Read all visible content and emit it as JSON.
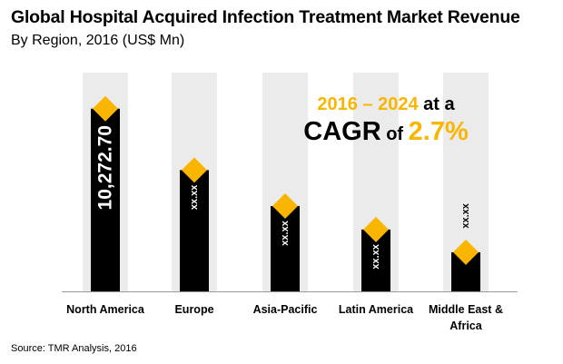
{
  "colors": {
    "column_bg": "#ebebeb",
    "bar": "#000000",
    "marker": "#f9b500",
    "accent": "#f9b500",
    "axis": "#9a9a9a"
  },
  "cagr": {
    "period": "2016 – 2024",
    "at_a": " at a",
    "label": "CAGR",
    "of": " of ",
    "value": "2.7%"
  },
  "source": "Source: TMR Analysis, 2016",
  "chart_data": {
    "type": "bar",
    "title": "Global Hospital Acquired Infection Treatment Market Revenue",
    "subtitle": "By Region, 2016 (US$ Mn)",
    "xlabel": "",
    "ylabel": "",
    "categories": [
      "North America",
      "Europe",
      "Asia-Pacific",
      "Latin America",
      "Middle East & Africa"
    ],
    "values": [
      10272.7,
      6820,
      4800,
      3480,
      2200
    ],
    "data_labels": [
      "10,272.70",
      "xx.xx",
      "xx.xx",
      "xx.xx",
      "xx.xx"
    ],
    "ylim": [
      0,
      12300
    ],
    "grid": false,
    "legend": "none"
  }
}
